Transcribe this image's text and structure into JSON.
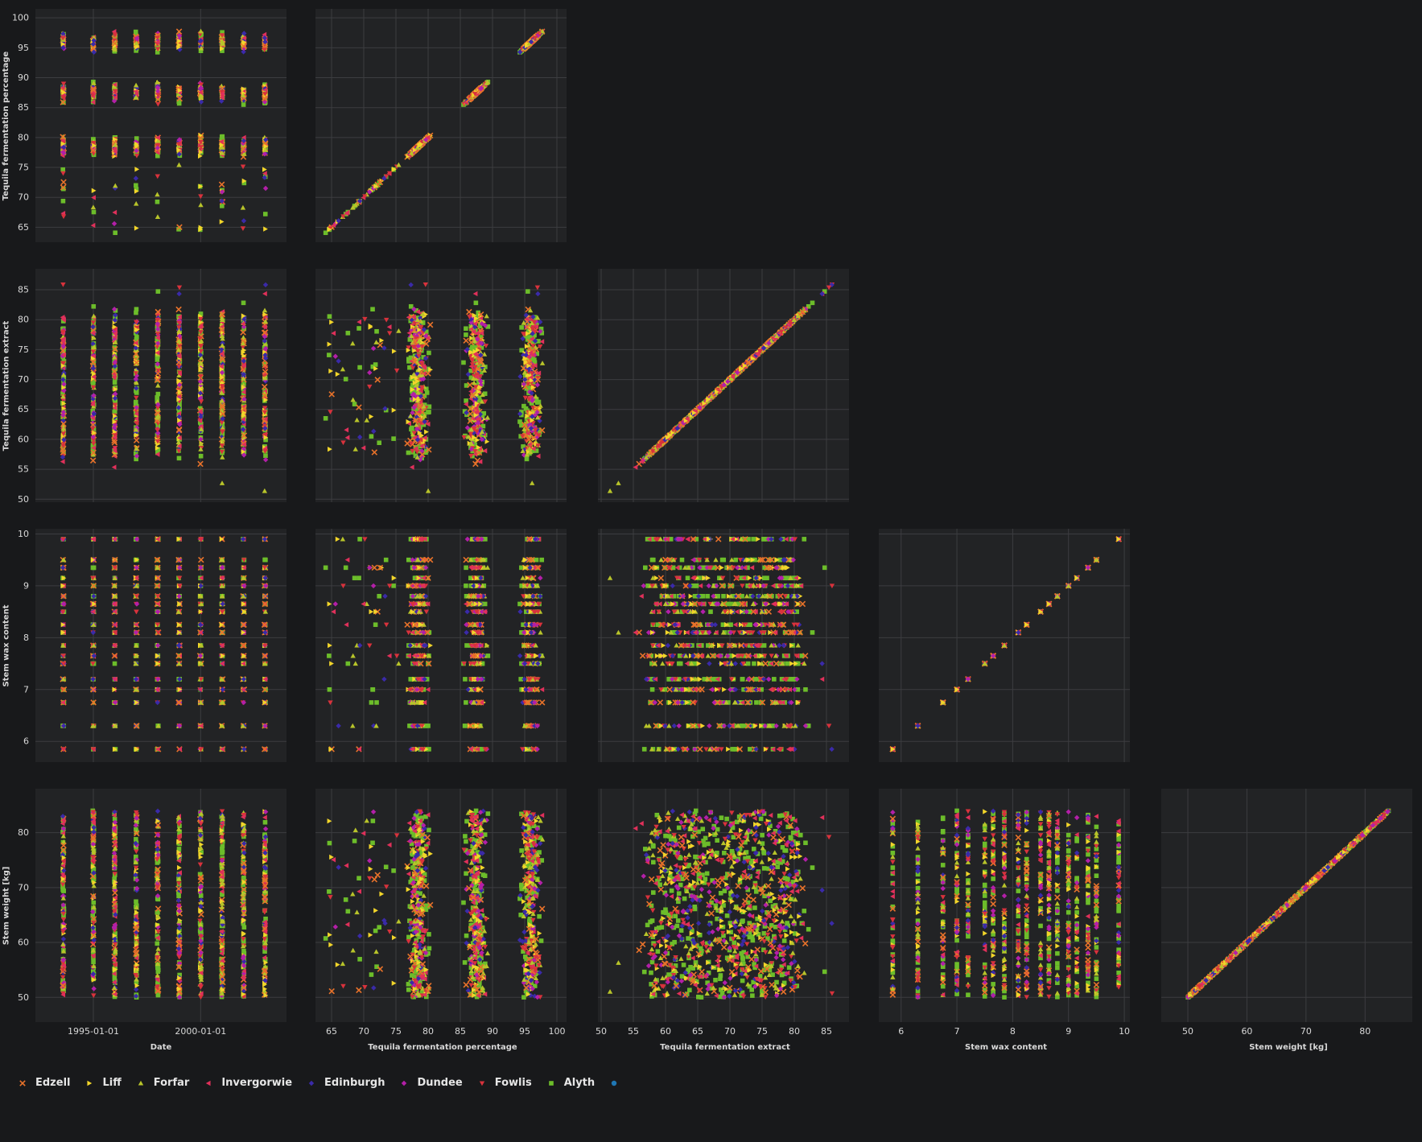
{
  "chart_data": {
    "type": "scatter-matrix",
    "variables": [
      {
        "key": "date",
        "label": "Date",
        "range": [
          1992.3,
          2004.0
        ],
        "ticks": [
          1995.0,
          2000.0
        ],
        "tick_labels": [
          "1995-01-01",
          "2000-01-01"
        ]
      },
      {
        "key": "pct",
        "label": "Tequila fermentation percentage",
        "range": [
          62.5,
          101.5
        ],
        "ticks": [
          65,
          70,
          75,
          80,
          85,
          90,
          95,
          100
        ],
        "tick_labels": [
          "65",
          "70",
          "75",
          "80",
          "85",
          "90",
          "95",
          "100"
        ]
      },
      {
        "key": "extract",
        "label": "Tequila fermentation extract",
        "range": [
          49.5,
          88.5
        ],
        "ticks": [
          50,
          55,
          60,
          65,
          70,
          75,
          80,
          85
        ],
        "tick_labels": [
          "50",
          "55",
          "60",
          "65",
          "70",
          "75",
          "80",
          "85"
        ]
      },
      {
        "key": "wax",
        "label": "Stem wax content",
        "range": [
          5.6,
          10.1
        ],
        "ticks": [
          6,
          7,
          8,
          9,
          10
        ],
        "tick_labels": [
          "6",
          "7",
          "8",
          "9",
          "10"
        ]
      },
      {
        "key": "weight",
        "label": "Stem weight [kg]",
        "range": [
          45.5,
          88.0
        ],
        "ticks": [
          50,
          60,
          70,
          80
        ],
        "tick_labels": [
          "50",
          "60",
          "70",
          "80"
        ]
      }
    ],
    "series": [
      {
        "name": "Edzell",
        "color": "#e8722a",
        "marker": "x"
      },
      {
        "name": "Liff",
        "color": "#f2d52a",
        "marker": "triangle-right"
      },
      {
        "name": "Forfar",
        "color": "#b8c42a",
        "marker": "triangle-up"
      },
      {
        "name": "Invergorwie",
        "color": "#e0305a",
        "marker": "triangle-left"
      },
      {
        "name": "Edinburgh",
        "color": "#3a2aa8",
        "marker": "diamond"
      },
      {
        "name": "Dundee",
        "color": "#b31fa8",
        "marker": "diamond"
      },
      {
        "name": "Fowlis",
        "color": "#d8323c",
        "marker": "triangle-down"
      },
      {
        "name": "Alyth",
        "color": "#6cbd2a",
        "marker": "square"
      },
      {
        "name": "",
        "color": "#1f77b4",
        "marker": "circle"
      }
    ],
    "date_clusters": [
      1993.6,
      1995.0,
      1996.0,
      1997.0,
      1998.0,
      1999.0,
      2000.0,
      2001.0,
      2002.0,
      2003.0
    ],
    "pct_clusters": [
      78.5,
      87.5,
      96.0
    ],
    "wax_levels": [
      5.85,
      6.3,
      6.75,
      7.0,
      7.2,
      7.5,
      7.65,
      7.85,
      8.1,
      8.25,
      8.5,
      8.65,
      8.8,
      9.0,
      9.15,
      9.35,
      9.5,
      9.9
    ],
    "grid": true,
    "legend": "bottom"
  }
}
